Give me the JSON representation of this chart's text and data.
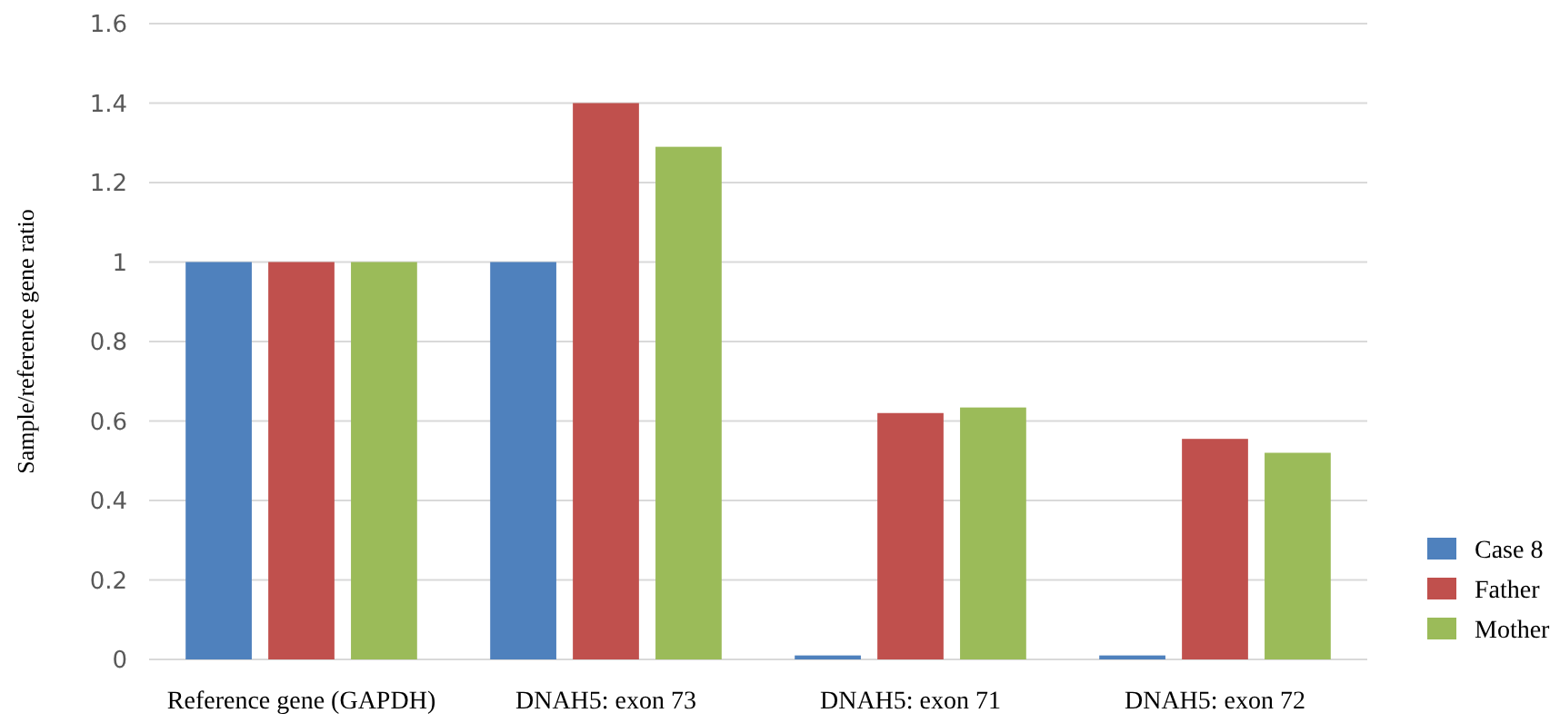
{
  "chart_data": {
    "type": "bar",
    "ylabel": "Sample/reference gene ratio",
    "categories": [
      "Reference gene (GAPDH)",
      "DNAH5: exon 73",
      "DNAH5: exon 71",
      "DNAH5: exon 72"
    ],
    "series": [
      {
        "name": "Case 8",
        "color": "#4f81bd",
        "values": [
          1,
          1,
          0.01,
          0.01
        ]
      },
      {
        "name": "Father",
        "color": "#c0504d",
        "values": [
          1,
          1.4,
          0.62,
          0.555
        ]
      },
      {
        "name": "Mother",
        "color": "#9bbb59",
        "values": [
          1,
          1.29,
          0.634,
          0.52
        ]
      }
    ],
    "ylim": [
      0,
      1.6
    ],
    "yticks": [
      0,
      0.2,
      0.4,
      0.6,
      0.8,
      1,
      1.2,
      1.4,
      1.6
    ],
    "grid": "y",
    "legend": "bottom right"
  }
}
